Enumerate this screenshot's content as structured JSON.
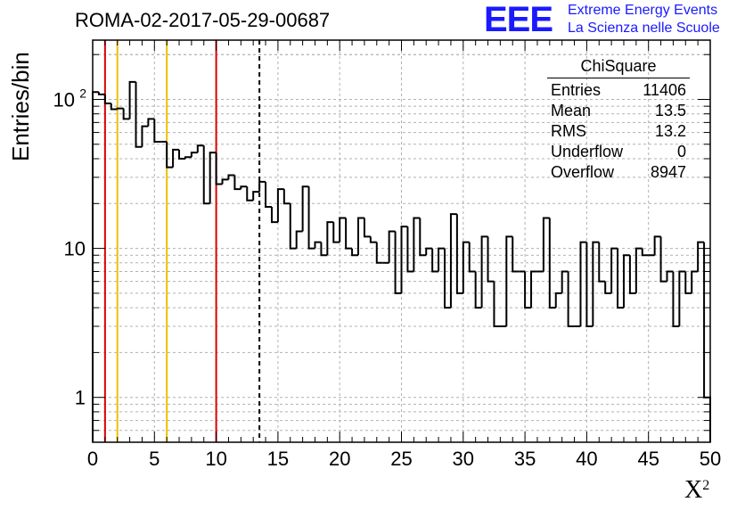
{
  "header": {
    "run_title": "ROMA-02-2017-05-29-00687",
    "logo_text": "EEE",
    "logo_line1": "Extreme Energy Events",
    "logo_line2": "La Scienza nelle Scuole"
  },
  "stats": {
    "title": "ChiSquare",
    "rows": [
      {
        "label": "Entries",
        "value": "11406"
      },
      {
        "label": "Mean",
        "value": "13.5"
      },
      {
        "label": "RMS",
        "value": "13.2"
      },
      {
        "label": "Underflow",
        "value": "0"
      },
      {
        "label": "Overflow",
        "value": "8947"
      }
    ]
  },
  "colors": {
    "histogram": "#000000",
    "red_line": "#dd0000",
    "yellow_line": "#f0c000",
    "grid": "#b0b0b0",
    "logo": "#1a1aff"
  },
  "chart_data": {
    "type": "histogram",
    "title": "ROMA-02-2017-05-29-00687",
    "xlabel": "X",
    "xlabel_superscript": "2",
    "ylabel": "Entries/bin",
    "xlim": [
      0,
      50
    ],
    "ylim": [
      0.5,
      250
    ],
    "ylog": true,
    "grid": true,
    "bin_width": 0.5,
    "x_ticks": [
      "0",
      "5",
      "10",
      "15",
      "20",
      "25",
      "30",
      "35",
      "40",
      "45",
      "50"
    ],
    "y_ticks": [
      {
        "value": 1,
        "label": "1"
      },
      {
        "value": 10,
        "label": "10"
      },
      {
        "value": 100,
        "label": "10",
        "exponent": "2"
      }
    ],
    "values": [
      112,
      108,
      94,
      86,
      87,
      74,
      131,
      48,
      66,
      74,
      52,
      52,
      35,
      46,
      40,
      41,
      44,
      49,
      20,
      44,
      27,
      29,
      31,
      25,
      26,
      21,
      24,
      28,
      19,
      15,
      25,
      20,
      10,
      13,
      26,
      10,
      11,
      9,
      15,
      11,
      16,
      10,
      9,
      16,
      12,
      11,
      8,
      8,
      13,
      5,
      14,
      7,
      16,
      9,
      10,
      7,
      10,
      4,
      17,
      5,
      11,
      7,
      4,
      12,
      6,
      3,
      3,
      12,
      7,
      7,
      4,
      7,
      7,
      16,
      4,
      5,
      7,
      3,
      3,
      11,
      3,
      11,
      6,
      5,
      10,
      4,
      9,
      5,
      10,
      9,
      9,
      12,
      6,
      7,
      3,
      7,
      5,
      7,
      11,
      1
    ],
    "vertical_lines": [
      {
        "x": 1,
        "color": "red",
        "style": "solid"
      },
      {
        "x": 2,
        "color": "yellow",
        "style": "solid"
      },
      {
        "x": 6,
        "color": "yellow",
        "style": "solid"
      },
      {
        "x": 10,
        "color": "red",
        "style": "solid"
      },
      {
        "x": 13.5,
        "color": "black",
        "style": "dashed"
      }
    ]
  }
}
